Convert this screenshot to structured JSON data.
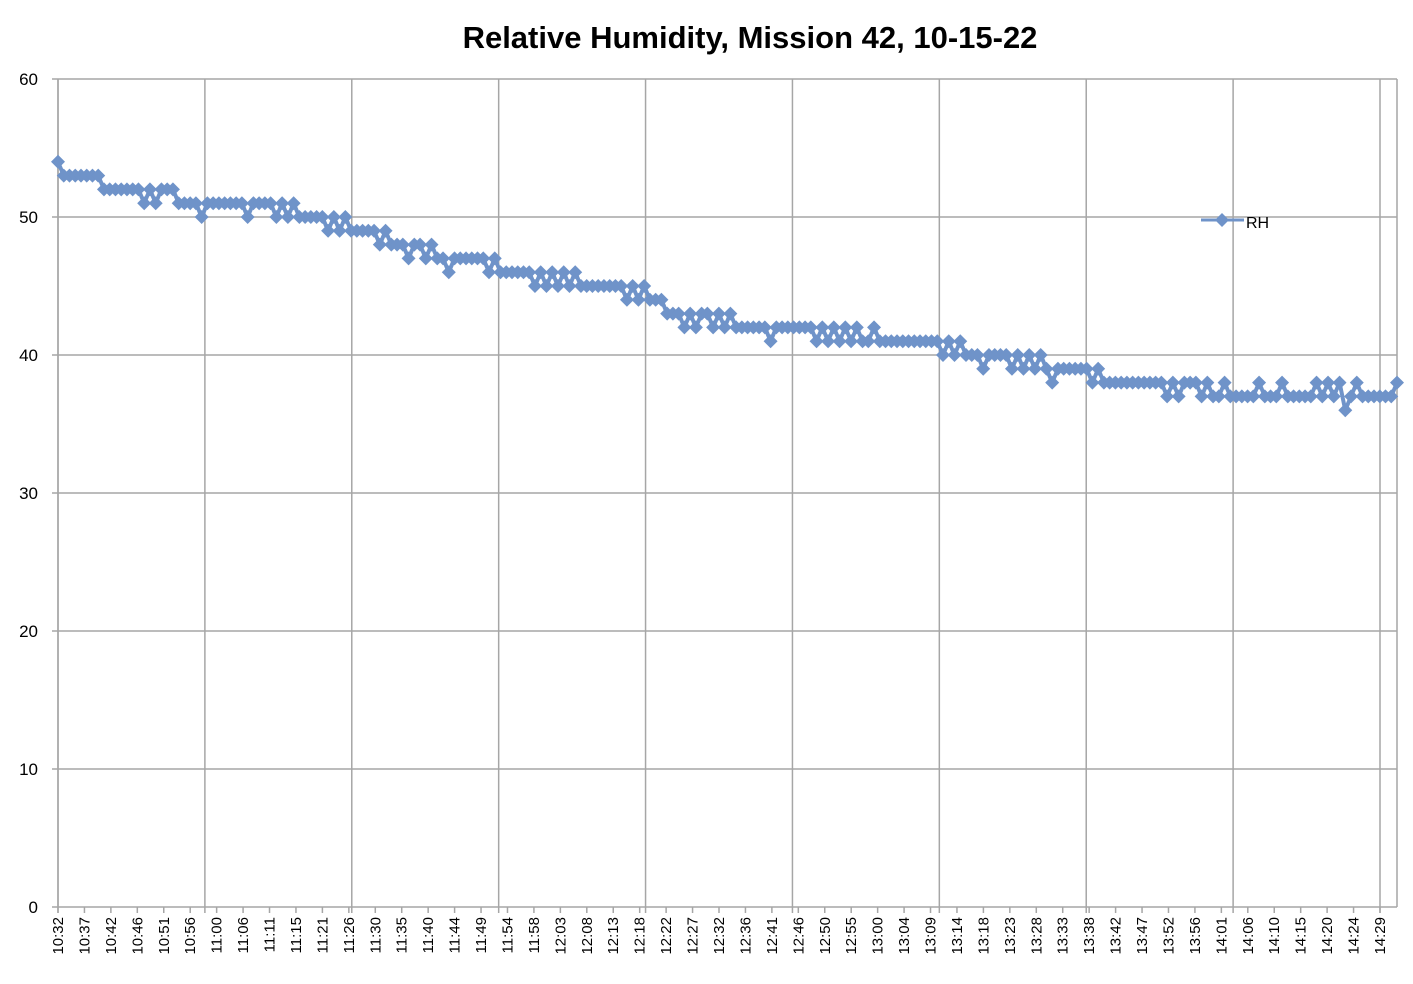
{
  "chart_data": {
    "type": "line",
    "title": "Relative Humidity, Mission 42, 10-15-22",
    "xlabel": "",
    "ylabel": "",
    "ylim": [
      0,
      60
    ],
    "yticks": [
      0,
      10,
      20,
      30,
      40,
      50,
      60
    ],
    "grid": true,
    "legend": {
      "position": "right",
      "entries": [
        "RH"
      ]
    },
    "series_color": "#6f93c9",
    "x_tick_labels": [
      "10:32",
      "10:37",
      "10:42",
      "10:46",
      "10:51",
      "10:56",
      "11:00",
      "11:06",
      "11:11",
      "11:15",
      "11:21",
      "11:26",
      "11:30",
      "11:35",
      "11:40",
      "11:44",
      "11:49",
      "11:54",
      "11:58",
      "12:03",
      "12:08",
      "12:13",
      "12:18",
      "12:22",
      "12:27",
      "12:32",
      "12:36",
      "12:41",
      "12:46",
      "12:50",
      "12:55",
      "13:00",
      "13:04",
      "13:09",
      "13:14",
      "13:18",
      "13:23",
      "13:28",
      "13:33",
      "13:38",
      "13:42",
      "13:47",
      "13:52",
      "13:56",
      "14:01",
      "14:06",
      "14:10",
      "14:15",
      "14:20",
      "14:24",
      "14:29"
    ],
    "series": [
      {
        "name": "RH",
        "marker": "diamond",
        "values": [
          54,
          53,
          53,
          53,
          53,
          53,
          53,
          53,
          52,
          52,
          52,
          52,
          52,
          52,
          52,
          51,
          52,
          51,
          52,
          52,
          52,
          51,
          51,
          51,
          51,
          50,
          51,
          51,
          51,
          51,
          51,
          51,
          51,
          50,
          51,
          51,
          51,
          51,
          50,
          51,
          50,
          51,
          50,
          50,
          50,
          50,
          50,
          49,
          50,
          49,
          50,
          49,
          49,
          49,
          49,
          49,
          48,
          49,
          48,
          48,
          48,
          47,
          48,
          48,
          47,
          48,
          47,
          47,
          46,
          47,
          47,
          47,
          47,
          47,
          47,
          46,
          47,
          46,
          46,
          46,
          46,
          46,
          46,
          45,
          46,
          45,
          46,
          45,
          46,
          45,
          46,
          45,
          45,
          45,
          45,
          45,
          45,
          45,
          45,
          44,
          45,
          44,
          45,
          44,
          44,
          44,
          43,
          43,
          43,
          42,
          43,
          42,
          43,
          43,
          42,
          43,
          42,
          43,
          42,
          42,
          42,
          42,
          42,
          42,
          41,
          42,
          42,
          42,
          42,
          42,
          42,
          42,
          41,
          42,
          41,
          42,
          41,
          42,
          41,
          42,
          41,
          41,
          42,
          41,
          41,
          41,
          41,
          41,
          41,
          41,
          41,
          41,
          41,
          41,
          40,
          41,
          40,
          41,
          40,
          40,
          40,
          39,
          40,
          40,
          40,
          40,
          39,
          40,
          39,
          40,
          39,
          40,
          39,
          38,
          39,
          39,
          39,
          39,
          39,
          39,
          38,
          39,
          38,
          38,
          38,
          38,
          38,
          38,
          38,
          38,
          38,
          38,
          38,
          37,
          38,
          37,
          38,
          38,
          38,
          37,
          38,
          37,
          37,
          38,
          37,
          37,
          37,
          37,
          37,
          38,
          37,
          37,
          37,
          38,
          37,
          37,
          37,
          37,
          37,
          38,
          37,
          38,
          37,
          38,
          36,
          37,
          38,
          37,
          37,
          37,
          37,
          37,
          37,
          38
        ]
      }
    ]
  }
}
